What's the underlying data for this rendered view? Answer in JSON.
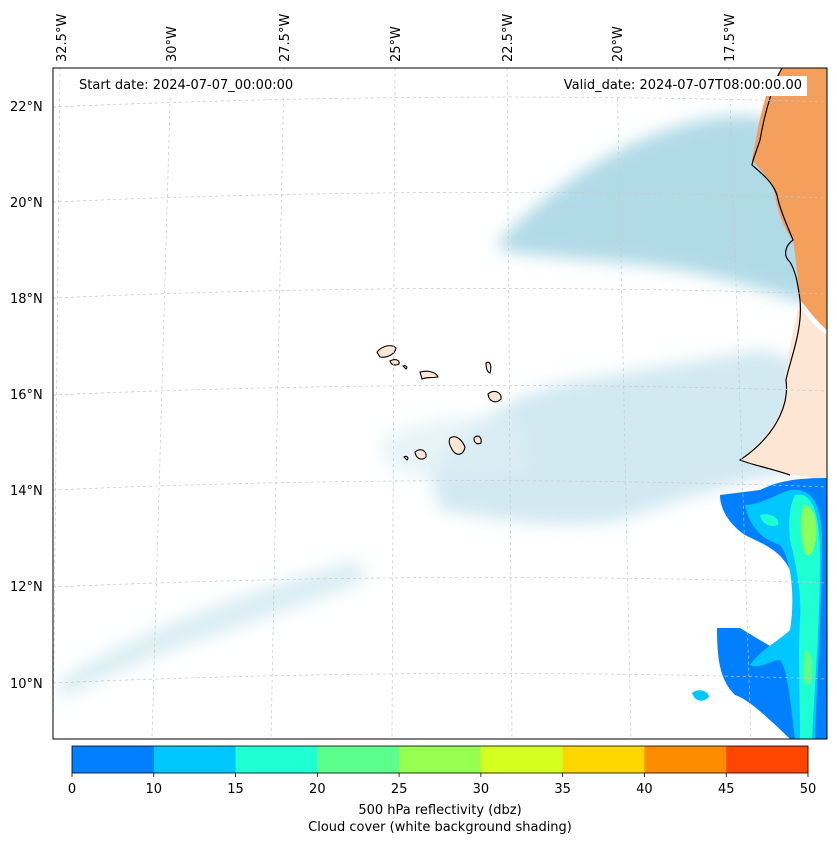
{
  "map": {
    "start_date": "Start date: 2024-07-07_00:00:00",
    "valid_date": "Valid_date: 2024-07-07T08:00:00.00",
    "lon_ticks": [
      "32.5°W",
      "30°W",
      "27.5°W",
      "25°W",
      "22.5°W",
      "20°W",
      "17.5°W"
    ],
    "lat_ticks": [
      "22°N",
      "20°N",
      "18°N",
      "16°N",
      "14°N",
      "12°N",
      "10°N"
    ]
  },
  "colorbar": {
    "ticks": [
      "0",
      "10",
      "15",
      "20",
      "25",
      "30",
      "35",
      "40",
      "45",
      "50"
    ],
    "colors": [
      "#0080ff",
      "#00c8ff",
      "#1effd2",
      "#5aff8c",
      "#96ff50",
      "#d2ff1e",
      "#ffd700",
      "#ff8c00",
      "#ff4600"
    ],
    "label_line1": "500 hPa reflectivity (dbz)",
    "label_line2": "Cloud cover (white background shading)"
  },
  "colors": {
    "land": "#f4a05c",
    "land_light": "#fde6d4",
    "cloud": "#add8e6",
    "grid": "#c8c8c8"
  }
}
